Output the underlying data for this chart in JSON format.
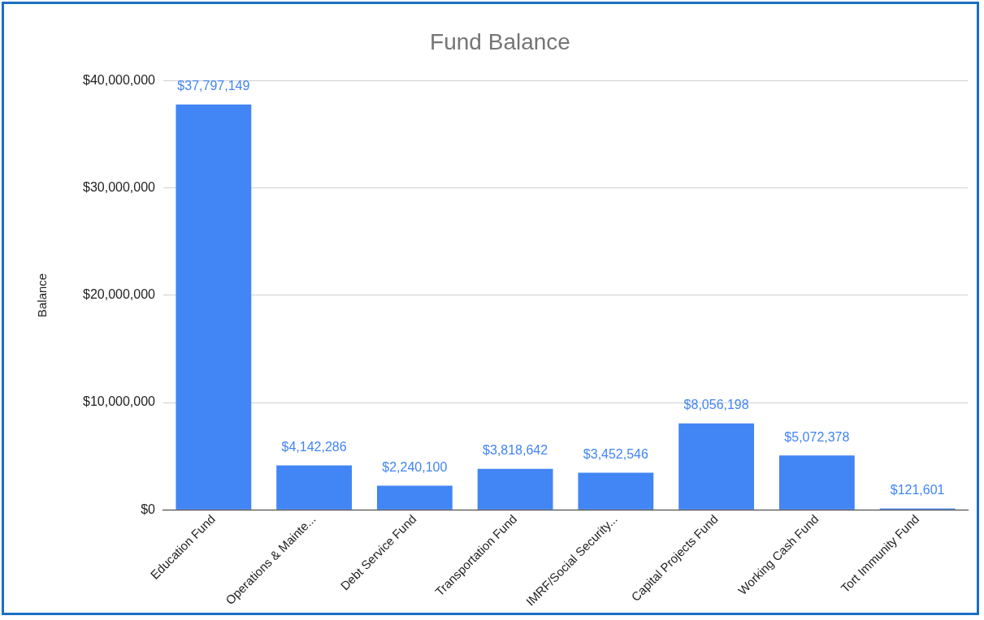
{
  "chart_data": {
    "type": "bar",
    "title": "Fund Balance",
    "ylabel": "Balance",
    "categories": [
      "Education Fund",
      "Operations & Mainte...",
      "Debt Service Fund",
      "Transportation Fund",
      "IMRF/Social Security...",
      "Capital Projects Fund",
      "Working Cash Fund",
      "Tort Immunity Fund"
    ],
    "values": [
      37797149,
      4142286,
      2240100,
      3818642,
      3452546,
      8056198,
      5072378,
      121601
    ],
    "value_labels": [
      "$37,797,149",
      "$4,142,286",
      "$2,240,100",
      "$3,818,642",
      "$3,452,546",
      "$8,056,198",
      "$5,072,378",
      "$121,601"
    ],
    "color": "#4285f4",
    "ylim": [
      0,
      40000000
    ],
    "yticks": [
      {
        "value": 0,
        "label": "$0"
      },
      {
        "value": 10000000,
        "label": "$10,000,000"
      },
      {
        "value": 20000000,
        "label": "$20,000,000"
      },
      {
        "value": 30000000,
        "label": "$30,000,000"
      },
      {
        "value": 40000000,
        "label": "$40,000,000"
      }
    ],
    "grid": "y",
    "legend": false
  }
}
